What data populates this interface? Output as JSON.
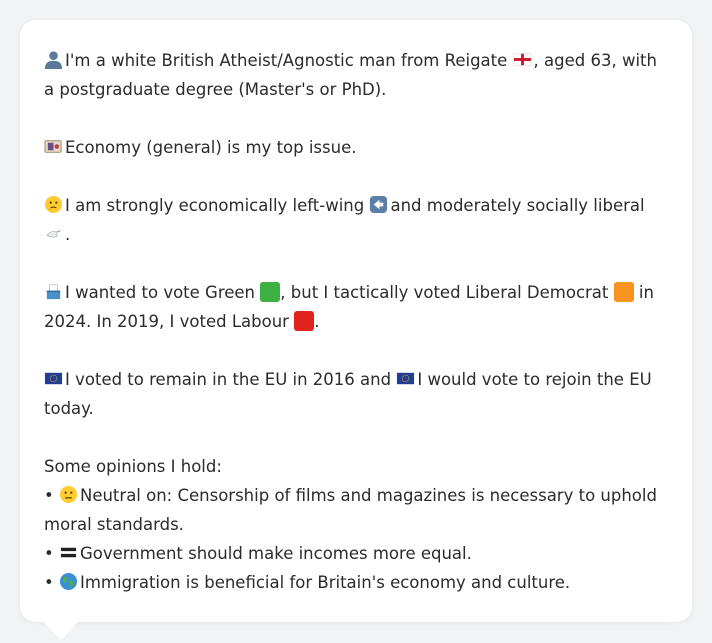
{
  "profile": {
    "line1_a": "I'm a white British Atheist/Agnostic man from Reigate",
    "line1_b": ", aged 63, with a postgraduate degree (Master's or PhD).",
    "top_issue": "Economy (general) is my top issue.",
    "ideology_a": "I am strongly economically left-wing",
    "ideology_b": "and moderately socially liberal",
    "ideology_c": ".",
    "vote_a": "I wanted to vote Green",
    "vote_b": ", but I tactically voted Liberal Democrat",
    "vote_c": "in 2024. In 2019, I voted Labour",
    "vote_d": ".",
    "eu_a": "I voted to remain in the EU in 2016 and",
    "eu_b": "I would vote to rejoin the EU today."
  },
  "opinions": {
    "heading": "Some opinions I hold:",
    "bullet": "•",
    "items": [
      "Neutral on: Censorship of films and magazines is necessary to uphold moral standards.",
      "Government should make incomes more equal.",
      "Immigration is beneficial for Britain's economy and culture."
    ]
  },
  "icons": {
    "person": "person-silhouette-icon",
    "flag": "england-flag-icon",
    "money": "banknote-icon",
    "thinking": "thinking-face-icon",
    "left_arrow": "left-arrow-icon",
    "dove": "dove-icon",
    "ballot": "ballot-box-icon",
    "eu": "eu-flag-icon",
    "neutral": "neutral-face-icon",
    "equals": "equals-icon",
    "globe": "globe-icon"
  },
  "colors": {
    "green_party": "#3cb043",
    "libdem": "#f7931e",
    "labour": "#e0231c",
    "eu_blue": "#1f3d99"
  }
}
